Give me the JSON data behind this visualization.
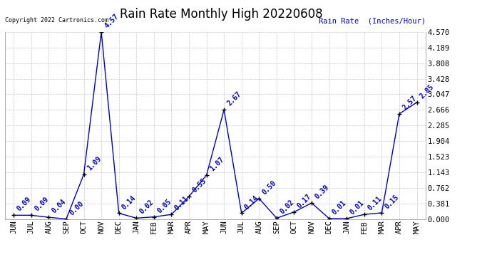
{
  "title": "Rain Rate Monthly High 20220608",
  "ylabel_right": "Rain Rate  (Inches/Hour)",
  "copyright_text": "Copyright 2022 Cartronics.com",
  "line_color": "#0000bb",
  "bg_color": "#ffffff",
  "plot_bg_color": "#ffffff",
  "grid_color": "#c8c8c8",
  "x_labels": [
    "JUN",
    "JUL",
    "AUG",
    "SEP",
    "OCT",
    "NOV",
    "DEC",
    "JAN",
    "FEB",
    "MAR",
    "APR",
    "MAY",
    "JUN",
    "JUL",
    "AUG",
    "SEP",
    "OCT",
    "NOV",
    "DEC",
    "JAN",
    "FEB",
    "MAR",
    "APR",
    "MAY"
  ],
  "y_values": [
    0.09,
    0.09,
    0.04,
    0.0,
    1.09,
    4.57,
    0.14,
    0.02,
    0.05,
    0.11,
    0.55,
    1.07,
    2.67,
    0.14,
    0.5,
    0.02,
    0.17,
    0.39,
    0.01,
    0.01,
    0.11,
    0.15,
    2.57,
    2.85
  ],
  "y_labels": [
    0.0,
    0.381,
    0.762,
    1.143,
    1.523,
    1.904,
    2.285,
    2.666,
    3.047,
    3.428,
    3.808,
    4.189,
    4.57
  ],
  "ylim": [
    0.0,
    4.57
  ],
  "data_labels": [
    "0.09",
    "0.09",
    "0.04",
    "0.00",
    "1.09",
    "4.57",
    "0.14",
    "0.02",
    "0.05",
    "0.11",
    "0.55",
    "1.07",
    "2.67",
    "0.14",
    "0.50",
    "0.02",
    "0.17",
    "0.39",
    "0.01",
    "0.01",
    "0.11",
    "0.15",
    "2.57",
    "2.85"
  ],
  "title_fontsize": 12,
  "tick_fontsize": 7.5,
  "label_fontsize": 7,
  "marker_size": 4
}
